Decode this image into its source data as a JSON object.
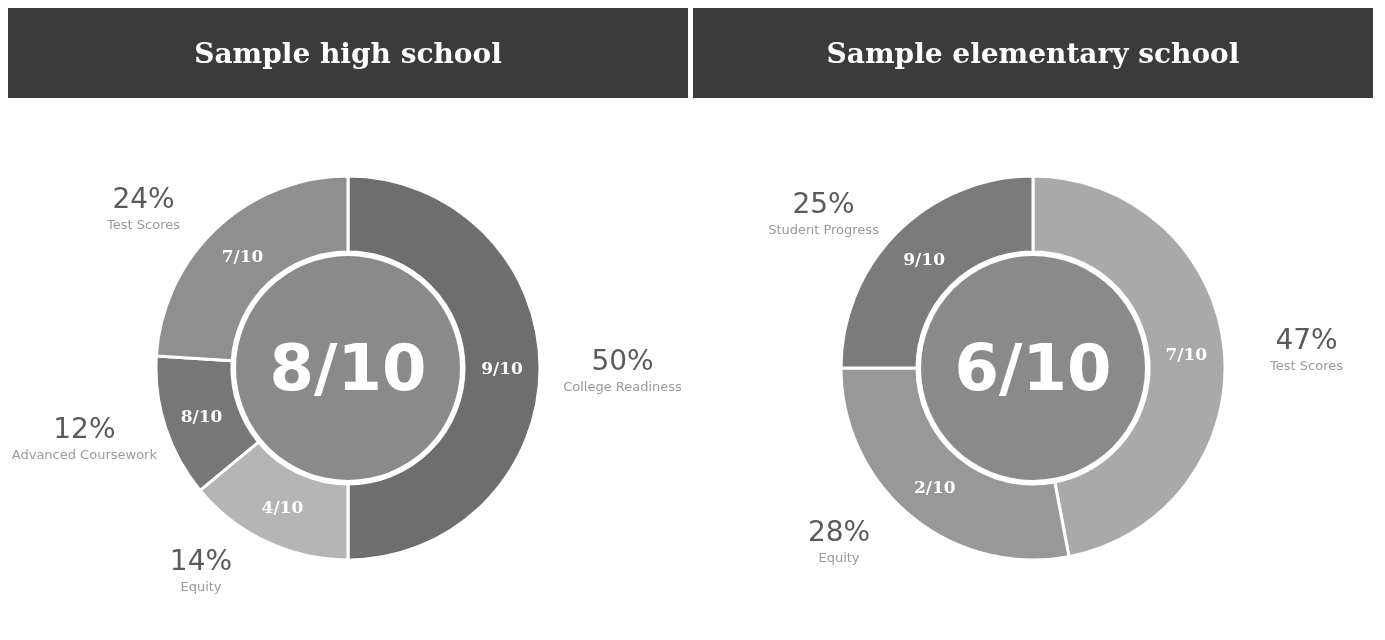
{
  "chart_data": [
    {
      "type": "donut",
      "title": "Sample high school",
      "categories": [
        "College Readiness",
        "Equity",
        "Advanced Coursework",
        "Test Scores"
      ],
      "values": [
        50,
        14,
        12,
        24
      ],
      "value_labels": [
        "50%",
        "14%",
        "12%",
        "24%"
      ],
      "colors": [
        "#6e6e6e",
        "#b5b5b5",
        "#777777",
        "#8f8f8f"
      ],
      "annotations": [
        "8/10",
        {
          "text": "9/10",
          "x": "College Readiness"
        },
        {
          "text": "4/10",
          "x": "Equity"
        },
        {
          "text": "8/10",
          "x": "Advanced Coursework"
        },
        {
          "text": "7/10",
          "x": "Test Scores"
        }
      ]
    },
    {
      "type": "donut",
      "title": "Sample elementary school",
      "categories": [
        "Test Scores",
        "Equity",
        "Student Progress"
      ],
      "values": [
        47,
        28,
        25
      ],
      "value_labels": [
        "47%",
        "28%",
        "25%"
      ],
      "colors": [
        "#a9a9a9",
        "#989898",
        "#7b7b7b"
      ],
      "annotations": [
        "6/10",
        {
          "text": "7/10",
          "x": "Test Scores"
        },
        {
          "text": "2/10",
          "x": "Equity"
        },
        {
          "text": "9/10",
          "x": "Student Progress"
        }
      ]
    }
  ]
}
